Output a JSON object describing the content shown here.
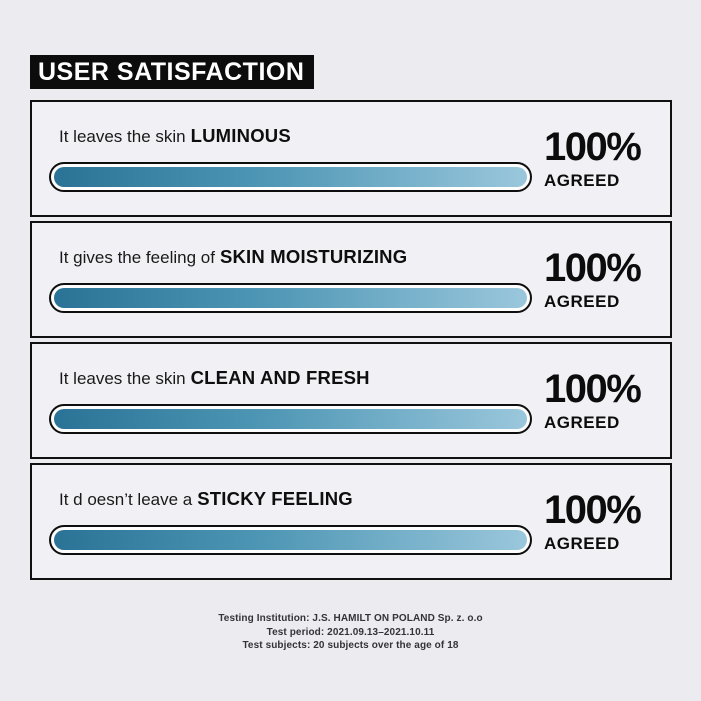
{
  "title": "USER SATISFACTION",
  "rows": [
    {
      "prefix": "It leaves the skin",
      "highlight": "LUMINOUS",
      "percent": "100%",
      "agreed": "AGREED",
      "value": 100
    },
    {
      "prefix": "It gives the feeling of",
      "highlight": "SKIN MOISTURIZING",
      "percent": "100%",
      "agreed": "AGREED",
      "value": 100
    },
    {
      "prefix": "It leaves the skin",
      "highlight": "CLEAN AND FRESH",
      "percent": "100%",
      "agreed": "AGREED",
      "value": 100
    },
    {
      "prefix": "It d oesn’t leave a",
      "highlight": "STICKY FEELING",
      "percent": "100%",
      "agreed": "AGREED",
      "value": 100
    }
  ],
  "footer": {
    "lines": [
      "Testing Institution: J.S. HAMILT ON POLAND Sp. z. o.o",
      "Test period: 2021.09.13–2021.10.11",
      "Test subjects: 20 subjects over the age of 18"
    ]
  },
  "colors": {
    "page_background": "#ebebf0",
    "card_background": "#f1f1f5",
    "border_black": "#101010",
    "title_background": "#0c0c0c",
    "title_text": "#ffffff",
    "bar_gradient_start": "#2a7396",
    "bar_gradient_mid": "#4f97b5",
    "bar_gradient_end": "#9ac7dc",
    "bar_track": "#fdfdfd"
  },
  "chart_data": {
    "type": "bar",
    "orientation": "horizontal",
    "title": "USER SATISFACTION",
    "categories": [
      "It leaves the skin LUMINOUS",
      "It gives the feeling of SKIN MOISTURIZING",
      "It leaves the skin CLEAN AND FRESH",
      "It d oesn’t leave a STICKY FEELING"
    ],
    "values": [
      100,
      100,
      100,
      100
    ],
    "value_labels": [
      "100% AGREED",
      "100% AGREED",
      "100% AGREED",
      "100% AGREED"
    ],
    "unit": "% agreed",
    "xlim": [
      0,
      100
    ],
    "grid": false,
    "legend": false,
    "annotations": [
      "Testing Institution: J.S. HAMILT ON POLAND Sp. z. o.o",
      "Test period: 2021.09.13–2021.10.11",
      "Test subjects: 20 subjects over the age of 18"
    ]
  }
}
